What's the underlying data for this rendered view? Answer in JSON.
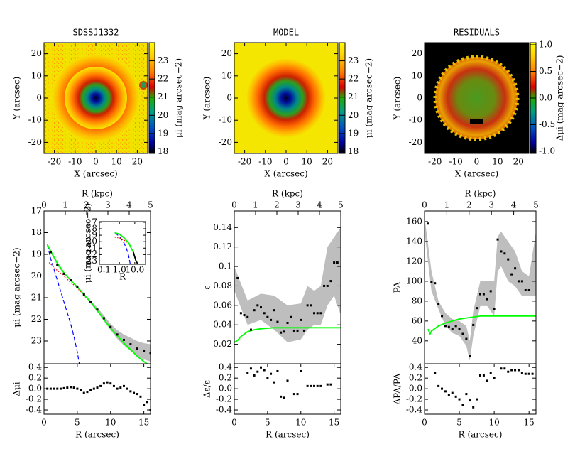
{
  "chart_data": [
    {
      "type": "image",
      "title": "SDSSJ1332",
      "xlabel": "X (arcsec)",
      "ylabel": "Y (arcsec)",
      "xlim": [
        -25,
        25
      ],
      "ylim": [
        -25,
        25
      ],
      "xticks": [
        -20,
        -10,
        0,
        10,
        20
      ],
      "yticks": [
        -20,
        -10,
        0,
        10,
        20
      ],
      "colorbar": {
        "label": "μi (mag arcsec−2)",
        "lim": [
          17.9,
          24
        ],
        "ticks": [
          18,
          19,
          20,
          21,
          22,
          23
        ]
      }
    },
    {
      "type": "image",
      "title": "MODEL",
      "xlabel": "X (arcsec)",
      "ylabel": "Y (arcsec)",
      "xlim": [
        -25,
        25
      ],
      "ylim": [
        -25,
        25
      ],
      "xticks": [
        -20,
        -10,
        0,
        10,
        20
      ],
      "yticks": [
        -20,
        -10,
        0,
        10,
        20
      ],
      "colorbar": {
        "label": "μi (mag arcsec−2)",
        "lim": [
          17.9,
          24
        ],
        "ticks": [
          18,
          19,
          20,
          21,
          22,
          23
        ]
      }
    },
    {
      "type": "image",
      "title": "RESIDUALS",
      "xlabel": "X (arcsec)",
      "ylabel": "Y (arcsec)",
      "xlim": [
        -25,
        25
      ],
      "ylim": [
        -25,
        25
      ],
      "xticks": [
        -20,
        -10,
        0,
        10,
        20
      ],
      "yticks": [
        -20,
        -10,
        0,
        10,
        20
      ],
      "colorbar": {
        "label": "Δμi (mag arcsec−2)",
        "lim": [
          -1.04,
          1.04
        ],
        "ticks": [
          {
            "value": 1,
            "label": "1.0"
          },
          0.5,
          {
            "value": 0,
            "label": "0.0"
          },
          -0.5,
          {
            "value": -1,
            "label": "-1.0"
          }
        ]
      }
    },
    {
      "type": "line",
      "ylabel": "μi (mag arcsec−2)",
      "x2label": "R (kpc)",
      "xlim": [
        0,
        16
      ],
      "x2lim": [
        0,
        5
      ],
      "x2ticks": [
        0,
        1,
        2,
        3,
        4,
        5
      ],
      "ylim": [
        24.05,
        17
      ],
      "yticks": [
        17,
        18,
        19,
        20,
        21,
        22,
        23
      ],
      "series": [
        {
          "style": "band",
          "color": "#bebebe",
          "x": [
            1,
            2,
            3,
            4,
            5,
            6,
            7,
            8,
            9,
            10,
            11,
            12,
            13,
            14,
            15,
            16
          ],
          "lower": [
            18.88,
            19.48,
            19.88,
            20.18,
            20.47,
            20.8,
            21.13,
            21.45,
            21.82,
            22.2,
            22.5,
            22.7,
            22.85,
            23.0,
            23.1,
            23.15
          ],
          "upper": [
            18.92,
            19.52,
            19.92,
            20.22,
            20.53,
            20.9,
            21.27,
            21.65,
            22.08,
            22.5,
            22.9,
            23.2,
            23.45,
            23.7,
            23.85,
            23.95
          ]
        },
        {
          "style": "dashed",
          "color": "#0000ff",
          "x": [
            0.5,
            1,
            1.5,
            2,
            2.5,
            3,
            3.5,
            4,
            4.5,
            5,
            5.3
          ],
          "values": [
            18.55,
            19.2,
            19.7,
            20.2,
            20.7,
            21.2,
            21.7,
            22.2,
            22.8,
            23.5,
            24.05
          ]
        },
        {
          "style": "dotted",
          "color": "#ff0000",
          "x": [
            0.5,
            1,
            2,
            3,
            4,
            5,
            6,
            7,
            8
          ],
          "values": [
            19.3,
            19.45,
            19.75,
            20.0,
            20.3,
            20.55,
            20.9,
            21.2,
            21.6
          ]
        },
        {
          "style": "solid",
          "color": "#00ff00",
          "x": [
            0.5,
            1,
            2,
            3,
            4,
            5,
            6,
            7,
            8,
            9,
            10,
            11,
            12,
            13,
            14,
            15,
            15.5
          ],
          "values": [
            18.55,
            18.85,
            19.4,
            19.85,
            20.2,
            20.5,
            20.85,
            21.2,
            21.6,
            22.0,
            22.4,
            22.75,
            23.1,
            23.4,
            23.7,
            23.95,
            24.05
          ]
        },
        {
          "style": "dots",
          "color": "#000000",
          "x": [
            1,
            2,
            3,
            4,
            5,
            6,
            7,
            8,
            9,
            10,
            11,
            12,
            13,
            14,
            15,
            16
          ],
          "values": [
            18.9,
            19.5,
            19.9,
            20.2,
            20.5,
            20.85,
            21.2,
            21.55,
            21.95,
            22.35,
            22.7,
            22.95,
            23.15,
            23.35,
            23.45,
            23.55
          ]
        }
      ]
    },
    {
      "type": "scatter",
      "xlabel": "R (arcsec)",
      "ylabel": "Δμi",
      "xlim": [
        0,
        16
      ],
      "xticks": [
        0,
        5,
        10,
        15
      ],
      "ylim": [
        -0.48,
        0.47
      ],
      "yticks": [
        0.4,
        0.2,
        {
          "value": 0,
          "label": "0.0"
        },
        -0.2,
        -0.4
      ],
      "series": [
        {
          "style": "dots",
          "color": "#000000",
          "x": [
            0.5,
            1,
            1.5,
            2,
            2.5,
            3,
            3.5,
            4,
            4.5,
            5,
            5.5,
            6,
            6.5,
            7,
            7.5,
            8,
            8.5,
            9,
            9.5,
            10,
            10.5,
            11,
            11.5,
            12,
            12.5,
            13,
            13.5,
            14,
            14.5,
            15,
            15.5,
            16
          ],
          "values": [
            0,
            0,
            0,
            0,
            0,
            0.01,
            0.02,
            0.03,
            0.02,
            0,
            -0.03,
            -0.08,
            -0.06,
            -0.02,
            0,
            0.02,
            0.05,
            0.1,
            0.12,
            0.1,
            0.05,
            0,
            0.02,
            0.05,
            0,
            -0.05,
            -0.08,
            -0.1,
            -0.15,
            -0.3,
            -0.25,
            -0.4
          ]
        }
      ]
    },
    {
      "type": "line",
      "inset": true,
      "xscale": "log",
      "xlabel": "R",
      "ylabel": "μi (mag arcsec−2)",
      "xlim": [
        0.05,
        50
      ],
      "xticks": [
        0.1,
        {
          "value": 1,
          "label": "1.0"
        },
        {
          "value": 10,
          "label": "10.0"
        }
      ],
      "ylim": [
        23.5,
        16.9
      ],
      "yticks": [
        17,
        18,
        19,
        20,
        21,
        22,
        23
      ],
      "series": [
        {
          "style": "dashed",
          "color": "#0000ff",
          "x": [
            0.5,
            1,
            2,
            3,
            4,
            5
          ],
          "values": [
            18.6,
            19.2,
            20.2,
            21.2,
            22.2,
            23.4
          ]
        },
        {
          "style": "dotted",
          "color": "#ff0000",
          "x": [
            0.5,
            1,
            2,
            4,
            8
          ],
          "values": [
            19.3,
            19.45,
            19.75,
            20.3,
            21.6
          ]
        },
        {
          "style": "solid",
          "color": "#00ff00",
          "x": [
            0.5,
            1,
            2,
            4,
            8,
            12,
            16
          ],
          "values": [
            18.6,
            18.85,
            19.4,
            20.2,
            21.6,
            23.0,
            23.4
          ]
        },
        {
          "style": "solid",
          "color": "#000000",
          "x": [
            8,
            12,
            16
          ],
          "values": [
            21.6,
            23.0,
            23.5
          ]
        }
      ]
    },
    {
      "type": "line",
      "ylabel": "ε",
      "x2label": "R (kpc)",
      "xlim": [
        0,
        16
      ],
      "x2lim": [
        0,
        5
      ],
      "x2ticks": [
        0,
        1,
        2,
        3,
        4,
        5
      ],
      "ylim": [
        0,
        0.157
      ],
      "yticks": [
        0.02,
        0.04,
        0.06,
        0.08,
        0.1,
        0.12,
        0.14
      ],
      "series": [
        {
          "style": "band",
          "color": "#bebebe",
          "x": [
            0,
            2,
            4,
            6,
            8,
            10,
            11,
            12,
            13,
            14,
            15,
            16
          ],
          "lower": [
            0.075,
            0.04,
            0.045,
            0.035,
            0.022,
            0.025,
            0.035,
            0.04,
            0.04,
            0.06,
            0.07,
            0.05
          ],
          "upper": [
            0.1,
            0.065,
            0.072,
            0.07,
            0.06,
            0.062,
            0.08,
            0.075,
            0.08,
            0.12,
            0.13,
            0.14
          ]
        },
        {
          "style": "solid",
          "color": "#00ff00",
          "x": [
            0,
            0.5,
            1,
            2,
            3,
            4,
            6,
            16
          ],
          "values": [
            0.022,
            0.024,
            0.028,
            0.033,
            0.035,
            0.036,
            0.037,
            0.037
          ]
        },
        {
          "style": "dots",
          "color": "#000000",
          "x": [
            0.5,
            1,
            1.5,
            2,
            2.5,
            3,
            3.5,
            4,
            4.5,
            5,
            5.5,
            6,
            6.5,
            7,
            7.5,
            8,
            8.5,
            9,
            9.5,
            10,
            10.5,
            11,
            11.5,
            12,
            12.5,
            13,
            13.5,
            14,
            14.5,
            15,
            15.5
          ],
          "values": [
            0.088,
            0.052,
            0.05,
            0.048,
            0.035,
            0.055,
            0.06,
            0.058,
            0.052,
            0.048,
            0.045,
            0.055,
            0.043,
            0.032,
            0.033,
            0.042,
            0.048,
            0.034,
            0.034,
            0.045,
            0.034,
            0.06,
            0.06,
            0.052,
            0.052,
            0.052,
            0.08,
            0.08,
            0.085,
            0.104,
            0.104
          ]
        }
      ]
    },
    {
      "type": "scatter",
      "xlabel": "R (arcsec)",
      "ylabel": "Δε/ε",
      "xlim": [
        0,
        16
      ],
      "xticks": [
        0,
        5,
        10,
        15
      ],
      "ylim": [
        -0.48,
        0.47
      ],
      "yticks": [
        0.4,
        0.2,
        {
          "value": 0,
          "label": "0.0"
        },
        -0.2,
        -0.4
      ],
      "series": [
        {
          "style": "dots",
          "color": "#000000",
          "x": [
            2,
            2.5,
            3,
            3.5,
            4,
            4.5,
            5,
            5.5,
            6,
            6.5,
            7,
            7.5,
            8,
            9,
            9.5,
            10,
            11,
            11.5,
            12,
            12.5,
            13,
            14,
            14.5
          ],
          "values": [
            0.3,
            0.38,
            0.25,
            0.32,
            0.4,
            0.35,
            0.2,
            0.28,
            0.12,
            0.33,
            -0.15,
            -0.17,
            0.15,
            -0.1,
            -0.1,
            0.33,
            0.05,
            0.05,
            0.05,
            0.05,
            0.05,
            0.08,
            0.08
          ]
        }
      ]
    },
    {
      "type": "line",
      "ylabel": "PA",
      "x2label": "R (kpc)",
      "xlim": [
        0,
        16
      ],
      "x2lim": [
        0,
        5
      ],
      "x2ticks": [
        0,
        1,
        2,
        3,
        4,
        5
      ],
      "ylim": [
        17,
        170.7
      ],
      "yticks": [
        40,
        60,
        80,
        100,
        120,
        140,
        160
      ],
      "series": [
        {
          "style": "band",
          "color": "#bebebe",
          "x": [
            0,
            1,
            2,
            3,
            4,
            5,
            6,
            6.5,
            7,
            8,
            9,
            10,
            10.5,
            11,
            12,
            13,
            14,
            15,
            16
          ],
          "lower": [
            150,
            90,
            72,
            55,
            48,
            45,
            35,
            20,
            45,
            75,
            75,
            65,
            110,
            115,
            100,
            95,
            85,
            85,
            85
          ],
          "upper": [
            165,
            110,
            80,
            68,
            62,
            60,
            55,
            40,
            70,
            100,
            100,
            100,
            145,
            150,
            140,
            130,
            110,
            105,
            150
          ]
        },
        {
          "style": "solid",
          "color": "#00ff00",
          "x": [
            0.5,
            0.8,
            1,
            2,
            3,
            4,
            5,
            6,
            7,
            8,
            10,
            12,
            16
          ],
          "values": [
            52,
            47,
            50,
            55,
            58,
            60,
            62,
            63,
            64,
            65,
            65,
            65,
            65
          ]
        },
        {
          "style": "dots",
          "color": "#000000",
          "x": [
            0.5,
            1,
            1.5,
            2,
            2.5,
            3,
            3.5,
            4,
            4.5,
            5,
            5.5,
            6,
            6.5,
            7,
            7.5,
            8,
            8.5,
            9,
            9.5,
            10,
            10.5,
            11,
            11.5,
            12,
            12.5,
            13,
            13.5,
            14,
            14.5,
            15
          ],
          "values": [
            158,
            99,
            98,
            77,
            65,
            55,
            54,
            52,
            55,
            52,
            47,
            42,
            25,
            56,
            73,
            87,
            87,
            82,
            90,
            72,
            142,
            130,
            128,
            122,
            107,
            113,
            100,
            100,
            91,
            91
          ]
        }
      ]
    },
    {
      "type": "scatter",
      "xlabel": "R (arcsec)",
      "ylabel": "ΔPA/PA",
      "xlim": [
        0,
        16
      ],
      "xticks": [
        0,
        5,
        10,
        15
      ],
      "ylim": [
        -0.48,
        0.47
      ],
      "yticks": [
        0.4,
        0.2,
        {
          "value": 0,
          "label": "0.0"
        },
        -0.2,
        -0.4
      ],
      "series": [
        {
          "style": "dots",
          "color": "#000000",
          "x": [
            1.5,
            2,
            2.5,
            3,
            3.5,
            4,
            4.5,
            5,
            5.5,
            6,
            6.5,
            7,
            7.5,
            8,
            8.5,
            9,
            9.5,
            10,
            11,
            11.5,
            12,
            12.5,
            13,
            13.5,
            14,
            14.5,
            15,
            15.5
          ],
          "values": [
            0.3,
            0.05,
            0,
            -0.05,
            -0.12,
            -0.08,
            -0.15,
            -0.2,
            -0.3,
            -0.1,
            -0.22,
            -0.35,
            -0.2,
            0.25,
            0.25,
            0.15,
            0.3,
            0.2,
            0.38,
            0.38,
            0.32,
            0.35,
            0.35,
            0.35,
            0.3,
            0.28,
            0.28,
            0.28
          ]
        }
      ]
    }
  ]
}
